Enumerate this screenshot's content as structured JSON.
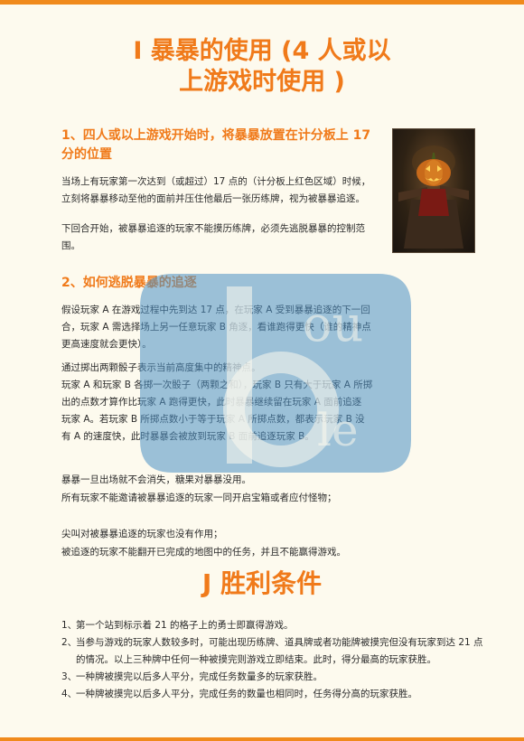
{
  "section_i": {
    "title_line1": "I  暴暴的使用 (4 人或以",
    "title_line2": "上游戏时使用 )",
    "sub1": {
      "heading": "1、四人或以上游戏开始时，将暴暴放置在计分板上 17 分的位置",
      "p1": "当场上有玩家第一次达到（或超过）17 点的（计分板上红色区域）时候，立刻将暴暴移动至他的面前并压住他最后一张历练牌，视为被暴暴追逐。",
      "p2": "下回合开始，被暴暴追逐的玩家不能摸历练牌，必须先逃脱暴暴的控制范围。"
    },
    "sub2": {
      "heading": "2、如何逃脱暴暴的追逐",
      "p1": "假设玩家 A 在游戏过程中先到达 17 点，在玩家 A 受到暴暴追逐的下一回合，玩家 A 需选择场上另一任意玩家 B 角逐，看谁跑得更快（谁的精神点更高速度就会更快）。",
      "lines": [
        "通过掷出两颗骰子表示当前高度集中的精神点。",
        "玩家 A 和玩家 B 各掷一次骰子（两颗之和），玩家 B 只有大于玩家 A 所掷",
        "出的点数才算作比玩家 A 跑得更快，此时暴暴继续留在玩家 A 面前追逐",
        "玩家 A。若玩家 B 所掷点数小于等于玩家 A 所掷点数，都表示玩家 B 没",
        "有 A 的速度快，此时暴暴会被放到玩家 B 面前追逐玩家 B。"
      ],
      "notes": [
        "暴暴一旦出场就不会消失，糖果对暴暴没用。",
        "所有玩家不能邀请被暴暴追逐的玩家一同开启宝箱或者应付怪物；",
        "尖叫对被暴暴追逐的玩家也没有作用；",
        "被追逐的玩家不能翻开已完成的地图中的任务，并且不能赢得游戏。"
      ]
    }
  },
  "section_j": {
    "title": "J  胜利条件",
    "items": [
      {
        "num": "1、",
        "text": "第一个站到标示着 21 的格子上的勇士即赢得游戏。"
      },
      {
        "num": "2、",
        "text": "当参与游戏的玩家人数较多时，可能出现历练牌、道具牌或者功能牌被摸完但没有玩家到达 21 点的情况。以上三种牌中任何一种被摸完则游戏立即结束。此时，得分最高的玩家获胜。"
      },
      {
        "num": "3、",
        "text": "一种牌被摸完以后多人平分，完成任务数量多的玩家获胜。"
      },
      {
        "num": "4、",
        "text": "一种牌被摸完以后多人平分，完成任务的数量也相同时，任务得分高的玩家获胜。"
      }
    ]
  },
  "watermark": {
    "letters_top": "ou",
    "letters_bottom": "le",
    "glyph": "b"
  },
  "colors": {
    "accent": "#f07a1a",
    "bar": "#f08a1c",
    "background": "#fdfaee",
    "watermark": "#4a8fc4"
  }
}
